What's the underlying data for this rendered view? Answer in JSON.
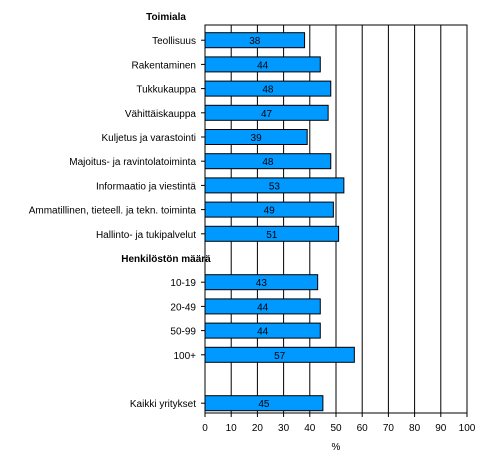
{
  "chart_data": {
    "type": "bar",
    "orientation": "horizontal",
    "xlabel": "%",
    "xlim": [
      0,
      100
    ],
    "xticks": [
      "0",
      "10",
      "20",
      "30",
      "40",
      "50",
      "60",
      "70",
      "80",
      "90",
      "100"
    ],
    "grid": true,
    "legend": "none",
    "bar_color": "#0099ff",
    "groups": [
      {
        "heading": "Toimiala",
        "categories": [
          "Teollisuus",
          "Rakentaminen",
          "Tukkukauppa",
          "Vähittäiskauppa",
          "Kuljetus ja varastointi",
          "Majoitus- ja ravintolatoiminta",
          "Informaatio ja viestintä",
          "Ammatillinen, tieteell. ja tekn. toiminta",
          "Hallinto- ja tukipalvelut"
        ],
        "values": [
          38,
          44,
          48,
          47,
          39,
          48,
          53,
          49,
          51
        ]
      },
      {
        "heading": "Henkilöstön määrä",
        "categories": [
          "10-19",
          "20-49",
          "50-99",
          "100+"
        ],
        "values": [
          43,
          44,
          44,
          57
        ]
      },
      {
        "heading": "",
        "categories": [
          "Kaikki yritykset"
        ],
        "values": [
          45
        ]
      }
    ]
  }
}
